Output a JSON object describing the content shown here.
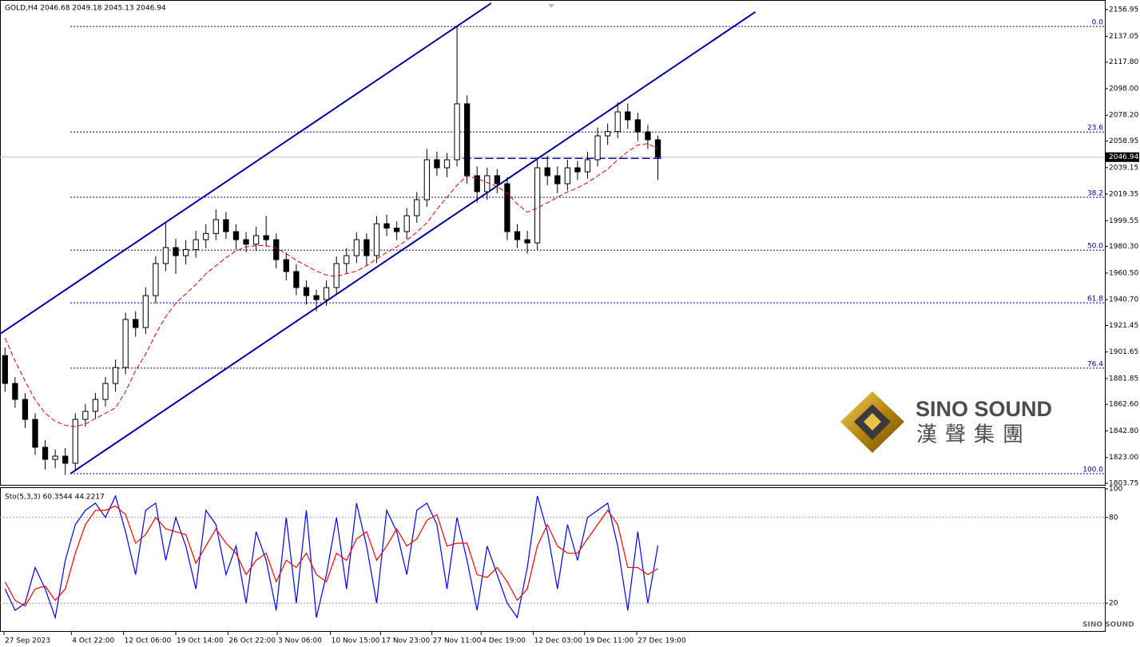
{
  "chart_data": [
    {
      "type": "candlestick",
      "title": "GOLD,H4 2046.68 2049.18 2045.13 2046.94",
      "color": "#000000",
      "open": [
        1899,
        1878.2,
        1866.3,
        1851.4,
        1830.6,
        1821.6,
        1824.0,
        1818.7,
        1851.4,
        1857.4,
        1866.3,
        1878.2,
        1890.1,
        1925.9,
        1919.9,
        1943.7,
        1967.6,
        1979.5,
        1973.5,
        1978.0,
        1985.4,
        1990.0,
        2000.3,
        1991.4,
        1985.4,
        1982.0,
        1988.4,
        1985.4,
        1970.5,
        1961.6,
        1949.7,
        1943.7,
        1940.7,
        1949.7,
        1967.6,
        1973.5,
        1985.4,
        1973.5,
        1997.3,
        1994.0,
        1991.4,
        2003.3,
        2015.2,
        2045.0,
        2039.0,
        2045.0,
        2086.7,
        2033.1,
        2021.2,
        2033.1,
        2027.1,
        1991.4,
        1985.4,
        1983.0,
        2039.0,
        2033.1,
        2027.1,
        2039.0,
        2036.0,
        2045.0,
        2062.8,
        2066.0,
        2080.7,
        2074.8,
        2065.8,
        2059.9
      ],
      "high": [
        1905,
        1883,
        1871,
        1856,
        1836,
        1829,
        1830,
        1856,
        1863,
        1871,
        1883,
        1896,
        1931,
        1932,
        1950,
        1973,
        1998,
        1986,
        1985,
        1992,
        1997,
        2008,
        2006,
        1997,
        1991,
        1995,
        2003,
        1990,
        1976,
        1967,
        1955,
        1948,
        1955,
        1973,
        1979,
        1991,
        1990,
        2003,
        2004,
        1999,
        2009,
        2021,
        2053,
        2051,
        2050,
        2144.4,
        2093,
        2040,
        2039,
        2038,
        2032,
        1997,
        1992,
        2045,
        2048,
        2040,
        2045,
        2044,
        2051,
        2069,
        2072,
        2088,
        2087,
        2080,
        2071,
        2063
      ],
      "low": [
        1872,
        1860,
        1845,
        1825,
        1814,
        1815,
        1810,
        1814,
        1846,
        1852,
        1861,
        1872,
        1885,
        1913,
        1915,
        1938,
        1962,
        1960,
        1967,
        1972,
        1979,
        1985,
        1986,
        1978,
        1976,
        1977,
        1980,
        1964,
        1955,
        1944,
        1937,
        1932,
        1936,
        1945,
        1960,
        1968,
        1966,
        1968,
        1988,
        1985,
        1986,
        1998,
        2010,
        2033,
        2032,
        2040,
        2027,
        2013,
        2015,
        2020,
        1985,
        1979,
        1975,
        1978,
        2026,
        2020,
        2022,
        2030,
        2031,
        2040,
        2056,
        2061,
        2068,
        2059,
        2053,
        2030
      ],
      "close": [
        1878.2,
        1866.3,
        1851.4,
        1830.6,
        1821.6,
        1824.0,
        1818.7,
        1851.4,
        1857.4,
        1866.3,
        1878.2,
        1890.1,
        1925.9,
        1919.9,
        1943.7,
        1967.6,
        1979.5,
        1973.5,
        1978.0,
        1985.4,
        1990.0,
        2000.3,
        1991.4,
        1985.4,
        1982.0,
        1988.4,
        1985.4,
        1970.5,
        1961.6,
        1949.7,
        1943.7,
        1940.7,
        1949.7,
        1967.6,
        1973.5,
        1985.4,
        1973.5,
        1997.3,
        1994.0,
        1991.4,
        2003.3,
        2015.2,
        2045.0,
        2039.0,
        2045.0,
        2086.7,
        2033.1,
        2021.2,
        2033.1,
        2027.1,
        1991.4,
        1985.4,
        1983.0,
        2039.0,
        2033.1,
        2027.1,
        2039.0,
        2036.0,
        2045.0,
        2062.8,
        2066.0,
        2080.7,
        2074.8,
        2065.8,
        2059.9,
        2046.94
      ],
      "ma": {
        "color": "#e00000",
        "values": [
          1912,
          1895,
          1880,
          1866,
          1856,
          1850,
          1847,
          1846,
          1848,
          1852,
          1856,
          1860,
          1872,
          1888,
          1900,
          1915,
          1928,
          1938,
          1945,
          1952,
          1960,
          1966,
          1972,
          1977,
          1980,
          1981,
          1981,
          1979,
          1975,
          1970,
          1966,
          1962,
          1959,
          1958,
          1960,
          1962,
          1966,
          1971,
          1976,
          1980,
          1985,
          1991,
          1998,
          2008,
          2017,
          2026,
          2033,
          2031,
          2028,
          2025,
          2020,
          2012,
          2006,
          2009,
          2013,
          2017,
          2021,
          2024,
          2028,
          2033,
          2038,
          2045,
          2051,
          2056,
          2057,
          2053
        ]
      },
      "channels": [
        {
          "color": "#00009c",
          "x": [
            0,
            48.9
          ],
          "y": [
            1915.1,
            2161.7
          ]
        },
        {
          "color": "#00009c",
          "x": [
            7,
            75.2
          ],
          "y": [
            1810.9,
            2155.2
          ]
        }
      ],
      "hline": {
        "color": "#00009c",
        "x": [
          46.1,
          66
        ],
        "y": 2046
      },
      "fib_levels": [
        {
          "label": "0.0",
          "value": 2144.4
        },
        {
          "label": "23.6",
          "value": 2065.7
        },
        {
          "label": "38.2",
          "value": 2017.0
        },
        {
          "label": "50.0",
          "value": 1977.65
        },
        {
          "label": "61.8",
          "value": 1938.3
        },
        {
          "label": "76.4",
          "value": 1889.6
        },
        {
          "label": "100.0",
          "value": 1810.9
        }
      ],
      "fib_color": "#00009c",
      "last_price": 2046.94,
      "xlim": [
        0,
        110
      ],
      "ylim": [
        1802,
        2164.1
      ],
      "yticks": [
        2156.95,
        2137.05,
        {
          "value": 2117.8,
          "label": "2117.80"
        },
        {
          "value": 2098,
          "label": "2098.00"
        },
        {
          "value": 2078.2,
          "label": "2078.20"
        },
        2058.95,
        2039.15,
        2019.35,
        1999.55,
        {
          "value": 1980.3,
          "label": "1980.30"
        },
        {
          "value": 1960.5,
          "label": "1960.50"
        },
        {
          "value": 1940.7,
          "label": "1940.70"
        },
        1921.45,
        1901.65,
        1881.85,
        {
          "value": 1862.6,
          "label": "1862.60"
        },
        {
          "value": 1842.8,
          "label": "1842.80"
        },
        {
          "value": 1823,
          "label": "1823.00"
        },
        1803.75
      ],
      "xticks": [
        {
          "value": 0.4,
          "label": "27 Sep 2023"
        },
        {
          "value": 7.1,
          "label": "4 Oct 22:00"
        },
        {
          "value": 12.3,
          "label": "12 Oct 06:00"
        },
        {
          "value": 17.5,
          "label": "19 Oct 14:00"
        },
        {
          "value": 22.7,
          "label": "26 Oct 22:00"
        },
        {
          "value": 27.6,
          "label": "3 Nov 06:00"
        },
        {
          "value": 32.9,
          "label": "10 Nov 15:00"
        },
        {
          "value": 37.9,
          "label": "17 Nov 23:00"
        },
        {
          "value": 43.0,
          "label": "27 Nov 11:00"
        },
        {
          "value": 47.9,
          "label": "4 Dec 19:00"
        },
        {
          "value": 53.1,
          "label": "12 Dec 03:00"
        },
        {
          "value": 58.2,
          "label": "19 Dec 11:00"
        },
        {
          "value": 63.4,
          "label": "27 Dec 19:00"
        }
      ]
    },
    {
      "type": "line",
      "title": "Sto(5,3,3) 60.3544 44.2217",
      "series": [
        {
          "color": "#0000ff",
          "values": [
            30,
            15,
            20,
            45,
            30,
            10,
            50,
            75,
            85,
            90,
            80,
            95,
            70,
            40,
            85,
            90,
            50,
            80,
            60,
            30,
            85,
            75,
            40,
            60,
            20,
            70,
            50,
            15,
            80,
            20,
            85,
            10,
            40,
            80,
            30,
            90,
            60,
            20,
            85,
            70,
            40,
            85,
            90,
            75,
            30,
            80,
            50,
            15,
            60,
            40,
            20,
            10,
            45,
            95,
            70,
            30,
            75,
            50,
            80,
            85,
            90,
            60,
            15,
            70,
            20,
            60.3544
          ]
        },
        {
          "color": "#ff0000",
          "values": [
            35,
            22,
            18,
            30,
            32,
            22,
            30,
            55,
            75,
            85,
            85,
            88,
            82,
            62,
            68,
            80,
            72,
            70,
            68,
            48,
            60,
            72,
            62,
            55,
            40,
            50,
            55,
            35,
            50,
            45,
            55,
            40,
            35,
            55,
            50,
            65,
            70,
            50,
            60,
            72,
            60,
            65,
            78,
            82,
            60,
            62,
            62,
            40,
            38,
            45,
            35,
            22,
            30,
            60,
            75,
            60,
            55,
            55,
            65,
            75,
            85,
            75,
            45,
            45,
            40,
            44.2217
          ]
        }
      ],
      "xlim": [
        0,
        110
      ],
      "ylim": [
        0,
        100
      ],
      "yticks": [
        100,
        80,
        20
      ]
    }
  ],
  "logo": {
    "name": "SINO SOUND",
    "chinese": "漢聲集團"
  }
}
